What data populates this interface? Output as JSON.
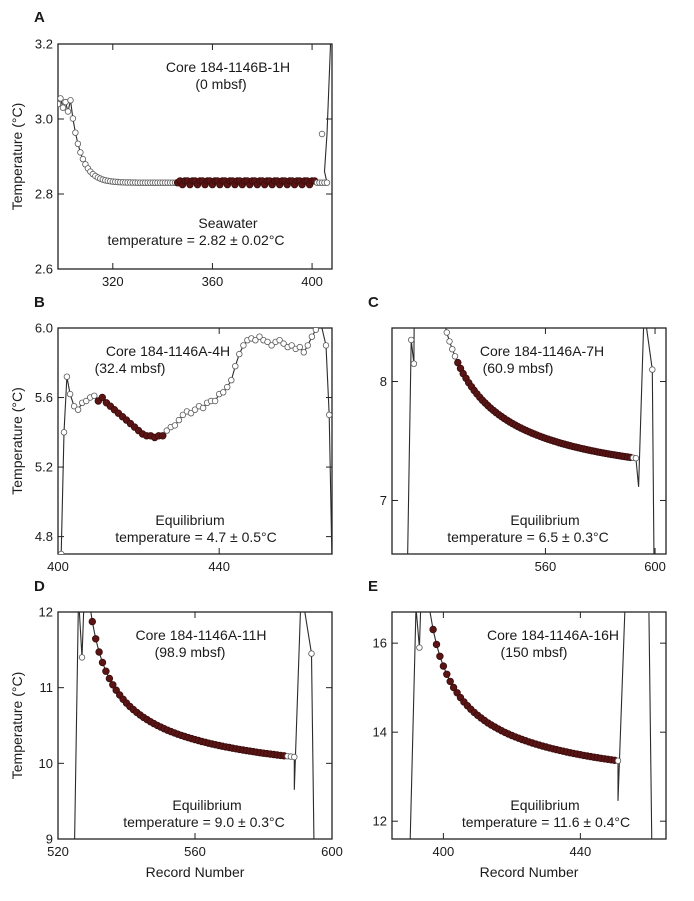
{
  "chart_data": [
    {
      "type": "scatter",
      "panel": "A",
      "ylabel": "Temperature (°C)",
      "xlabel": "",
      "xlim": [
        298,
        408
      ],
      "ylim": [
        2.6,
        3.2
      ],
      "xticks": [
        320,
        360,
        400
      ],
      "yticks": [
        2.6,
        2.8,
        3.0,
        3.2
      ],
      "xtick_labels": [
        "320",
        "360",
        "400"
      ],
      "ytick_labels": [
        "2.6",
        "2.8",
        "3.0",
        "3.2"
      ],
      "annotations": [
        "Core 184-1146B-1H",
        "(0 mbsf)",
        "Seawater",
        "temperature = 2.82 ± 0.02°C"
      ],
      "grid": false,
      "kind": "seawater",
      "curve": {
        "x0": 298,
        "x1": 406,
        "v0": 3.05,
        "plateau": 2.83,
        "tau": 4,
        "drop_start": 303
      },
      "fit": {
        "x0": 346,
        "x1": 401
      },
      "spike": {
        "start": 402,
        "end": 408,
        "top": 3.3
      }
    },
    {
      "type": "scatter",
      "panel": "B",
      "ylabel": "Temperature (°C)",
      "xlabel": "",
      "xlim": [
        400,
        468
      ],
      "ylim": [
        4.7,
        6.0
      ],
      "xticks": [
        400,
        440
      ],
      "yticks": [
        4.8,
        5.2,
        5.6,
        6.0
      ],
      "xtick_labels": [
        "400",
        "440"
      ],
      "ytick_labels": [
        "4.8",
        "5.2",
        "5.6",
        "6.0"
      ],
      "annotations": [
        "Core 184-1146A-4H",
        "(32.4 mbsf)",
        "Equilibrium",
        "temperature = 4.7 ± 0.5°C"
      ],
      "grid": false,
      "kind": "noisy",
      "points": [
        [
          400.8,
          4.7
        ],
        [
          401.5,
          5.4
        ],
        [
          402.2,
          5.72
        ],
        [
          403,
          5.62
        ],
        [
          404,
          5.55
        ],
        [
          405,
          5.53
        ],
        [
          406,
          5.57
        ],
        [
          407,
          5.58
        ],
        [
          408,
          5.6
        ],
        [
          409,
          5.61
        ],
        [
          410,
          5.58
        ],
        [
          411,
          5.6
        ],
        [
          412,
          5.57
        ],
        [
          413,
          5.55
        ],
        [
          414,
          5.53
        ],
        [
          415,
          5.51
        ],
        [
          416,
          5.49
        ],
        [
          417,
          5.47
        ],
        [
          418,
          5.45
        ],
        [
          419,
          5.43
        ],
        [
          420,
          5.41
        ],
        [
          421,
          5.39
        ],
        [
          422,
          5.38
        ],
        [
          423,
          5.38
        ],
        [
          424,
          5.37
        ],
        [
          425,
          5.38
        ],
        [
          426,
          5.38
        ],
        [
          427,
          5.41
        ],
        [
          428,
          5.43
        ],
        [
          429,
          5.44
        ],
        [
          430,
          5.47
        ],
        [
          431,
          5.5
        ],
        [
          432,
          5.52
        ],
        [
          433,
          5.51
        ],
        [
          434,
          5.53
        ],
        [
          435,
          5.55
        ],
        [
          436,
          5.54
        ],
        [
          437,
          5.57
        ],
        [
          438,
          5.58
        ],
        [
          439,
          5.58
        ],
        [
          440,
          5.62
        ],
        [
          441,
          5.63
        ],
        [
          442,
          5.66
        ],
        [
          443,
          5.7
        ],
        [
          444,
          5.78
        ],
        [
          445,
          5.85
        ],
        [
          446,
          5.9
        ],
        [
          447,
          5.93
        ],
        [
          448,
          5.94
        ],
        [
          449,
          5.93
        ],
        [
          450,
          5.95
        ],
        [
          451,
          5.93
        ],
        [
          452,
          5.92
        ],
        [
          453,
          5.9
        ],
        [
          454,
          5.92
        ],
        [
          455,
          5.93
        ],
        [
          456,
          5.91
        ],
        [
          457,
          5.89
        ],
        [
          458,
          5.9
        ],
        [
          459,
          5.88
        ],
        [
          460,
          5.89
        ],
        [
          461,
          5.86
        ],
        [
          462,
          5.9
        ],
        [
          463,
          5.95
        ],
        [
          464,
          5.99
        ],
        [
          465,
          6.05
        ],
        [
          466.5,
          5.9
        ],
        [
          467.3,
          5.5
        ],
        [
          468,
          4.65
        ]
      ],
      "fit": {
        "x0": 410,
        "x1": 426
      }
    },
    {
      "type": "scatter",
      "panel": "C",
      "ylabel": "",
      "xlabel": "",
      "xlim": [
        504,
        604
      ],
      "ylim": [
        6.55,
        8.45
      ],
      "xticks": [
        560,
        600
      ],
      "yticks": [
        7,
        8
      ],
      "xtick_labels": [
        "560",
        "600"
      ],
      "ytick_labels": [
        "7",
        "8"
      ],
      "annotations": [
        "Core 184-1146A-7H",
        "(60.9 mbsf)",
        "Equilibrium",
        "temperature = 6.5 ± 0.3°C"
      ],
      "grid": false,
      "kind": "decay",
      "dip": {
        "x": 509
      },
      "peak": {
        "x": 511,
        "v": 8.35
      },
      "curve": {
        "x0": 511,
        "x1": 593,
        "kind": "powerlaw",
        "a": 7.02,
        "b": 11.5,
        "c": 0.8,
        "shoulder": 8.15
      },
      "fit": {
        "x0": 528,
        "x1": 591
      },
      "spike": {
        "start": 593,
        "end": 601,
        "top": 8.6,
        "post": 8.1
      }
    },
    {
      "type": "scatter",
      "panel": "D",
      "ylabel": "Temperature (°C)",
      "xlabel": "Record Number",
      "xlim": [
        520,
        600
      ],
      "ylim": [
        9,
        12
      ],
      "xticks": [
        520,
        560,
        600
      ],
      "yticks": [
        9,
        10,
        11,
        12
      ],
      "xtick_labels": [
        "520",
        "560",
        "600"
      ],
      "ytick_labels": [
        "9",
        "10",
        "11",
        "12"
      ],
      "annotations": [
        "Core 184-1146A-11H",
        "(98.9 mbsf)",
        "Equilibrium",
        "temperature = 9.0 ± 0.3°C"
      ],
      "grid": false,
      "kind": "decay",
      "dip": {
        "x": 524.5
      },
      "peak": {
        "x": 526,
        "v": 12.2
      },
      "curve": {
        "x0": 526,
        "x1": 589,
        "kind": "powerlaw",
        "a": 9.5,
        "b": 5.75,
        "c": 0.55,
        "shoulder": 11.4
      },
      "fit": {
        "x0": 530,
        "x1": 586
      },
      "spike": {
        "start": 588,
        "end": 596,
        "top": 12.3,
        "post": 11.45
      }
    },
    {
      "type": "scatter",
      "panel": "E",
      "ylabel": "",
      "xlabel": "Record Number",
      "xlim": [
        385,
        465
      ],
      "ylim": [
        11.6,
        16.7
      ],
      "xticks": [
        400,
        440
      ],
      "yticks": [
        12,
        14,
        16
      ],
      "xtick_labels": [
        "400",
        "440"
      ],
      "ytick_labels": [
        "12",
        "14",
        "16"
      ],
      "annotations": [
        "Core 184-1146A-16H",
        "(150 mbsf)",
        "Equilibrium",
        "temperature = 11.6 ± 0.4°C"
      ],
      "grid": false,
      "kind": "decay",
      "dip": {
        "x": 390
      },
      "peak": {
        "x": 392,
        "v": 16.8
      },
      "curve": {
        "x0": 392,
        "x1": 451,
        "kind": "powerlaw",
        "a": 12.2,
        "b": 11.0,
        "c": 0.55,
        "shoulder": 15.9
      },
      "fit": {
        "x0": 396,
        "x1": 450
      },
      "spike": {
        "start": 450,
        "end": 462,
        "top": 16.75,
        "post": 16.75
      }
    }
  ]
}
